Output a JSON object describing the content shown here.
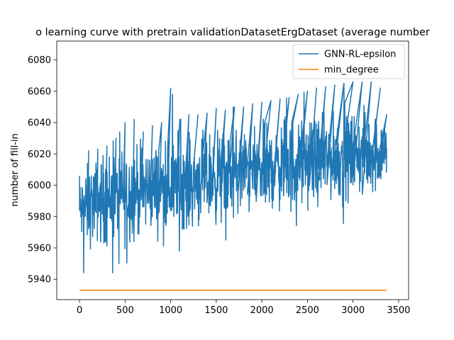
{
  "chart_data": {
    "type": "line",
    "title": "o learning curve with pretrain validationDatasetErgDataset (average number",
    "xlabel": "",
    "ylabel": "number of fill-in",
    "xlim": [
      -250,
      3610
    ],
    "ylim": [
      5927,
      6092
    ],
    "x_ticks": [
      0,
      500,
      1000,
      1500,
      2000,
      2500,
      3000,
      3500
    ],
    "y_ticks": [
      5940,
      5960,
      5980,
      6000,
      6020,
      6040,
      6060,
      6080
    ],
    "x_tick_labels": [
      "0",
      "500",
      "1000",
      "1500",
      "2000",
      "2500",
      "3000",
      "3500"
    ],
    "y_tick_labels": [
      "5940",
      "5960",
      "5980",
      "6000",
      "6020",
      "6040",
      "6060",
      "6080"
    ],
    "grid": false,
    "legend_position": "top-right",
    "series": [
      {
        "name": "GNN-RL-epsilon",
        "color": "#1f77b4",
        "x": [
          0,
          100,
          200,
          300,
          400,
          500,
          600,
          700,
          800,
          900,
          1000,
          1100,
          1200,
          1300,
          1400,
          1500,
          1600,
          1700,
          1800,
          1900,
          2000,
          2100,
          2200,
          2300,
          2400,
          2500,
          2600,
          2700,
          2800,
          2900,
          3000,
          3100,
          3200,
          3300,
          3370
        ],
        "mean": [
          5983,
          5987,
          5990,
          5991,
          5993,
          5994,
          5996,
          5997,
          5998,
          5999,
          6000,
          6001,
          6002,
          6003,
          6004,
          6005,
          6006,
          6007,
          6008,
          6009,
          6010,
          6011,
          6012,
          6013,
          6014,
          6015,
          6016,
          6016,
          6017,
          6018,
          6019,
          6020,
          6020,
          6021,
          6021
        ],
        "min": [
          5945,
          5943,
          5947,
          5934,
          5950,
          5950,
          5952,
          5955,
          5955,
          5957,
          5958,
          5958,
          5960,
          5960,
          5962,
          5962,
          5965,
          5966,
          5968,
          5969,
          5970,
          5972,
          5973,
          5956,
          5979,
          5983,
          5984,
          5985,
          5986,
          5975,
          5988,
          5988,
          5989,
          5989,
          5989
        ],
        "max": [
          6006,
          6022,
          6023,
          6025,
          6030,
          6040,
          6042,
          6034,
          6038,
          6040,
          6062,
          6042,
          6045,
          6045,
          6046,
          6049,
          6048,
          6050,
          6050,
          6052,
          6053,
          6054,
          6055,
          6056,
          6058,
          6060,
          6062,
          6063,
          6064,
          6065,
          6066,
          6066,
          6066,
          6062,
          6045
        ]
      },
      {
        "name": "min_degree",
        "color": "#ff7f0e",
        "x": [
          0,
          3370
        ],
        "values": [
          5933,
          5933
        ]
      }
    ]
  }
}
